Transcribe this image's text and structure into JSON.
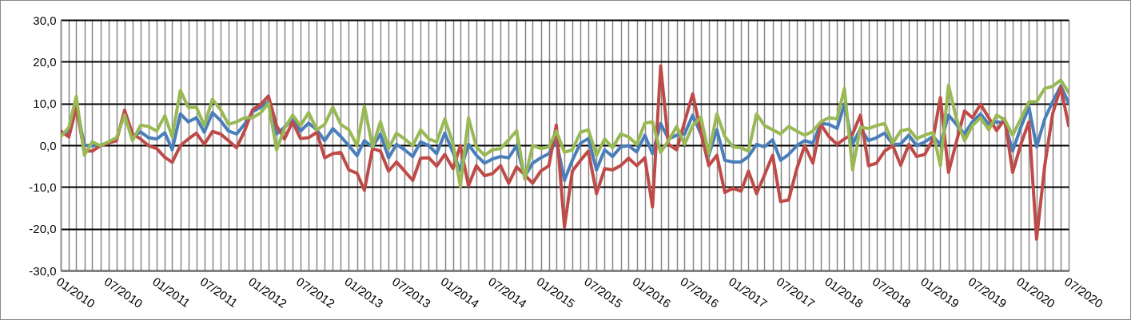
{
  "chart_data": {
    "type": "line",
    "x": [
      "2010-01",
      "2010-02",
      "2010-03",
      "2010-04",
      "2010-05",
      "2010-06",
      "2010-07",
      "2010-08",
      "2010-09",
      "2010-10",
      "2010-11",
      "2010-12",
      "2011-01",
      "2011-02",
      "2011-03",
      "2011-04",
      "2011-05",
      "2011-06",
      "2011-07",
      "2011-08",
      "2011-09",
      "2011-10",
      "2011-11",
      "2011-12",
      "2012-01",
      "2012-02",
      "2012-03",
      "2012-04",
      "2012-05",
      "2012-06",
      "2012-07",
      "2012-08",
      "2012-09",
      "2012-10",
      "2012-11",
      "2012-12",
      "2013-01",
      "2013-02",
      "2013-03",
      "2013-04",
      "2013-05",
      "2013-06",
      "2013-07",
      "2013-08",
      "2013-09",
      "2013-10",
      "2013-11",
      "2013-12",
      "2014-01",
      "2014-02",
      "2014-03",
      "2014-04",
      "2014-05",
      "2014-06",
      "2014-07",
      "2014-08",
      "2014-09",
      "2014-10",
      "2014-11",
      "2014-12",
      "2015-01",
      "2015-02",
      "2015-03",
      "2015-04",
      "2015-05",
      "2015-06",
      "2015-07",
      "2015-08",
      "2015-09",
      "2015-10",
      "2015-11",
      "2015-12",
      "2016-01",
      "2016-02",
      "2016-03",
      "2016-04",
      "2016-05",
      "2016-06",
      "2016-07",
      "2016-08",
      "2016-09",
      "2016-10",
      "2016-11",
      "2016-12",
      "2017-01",
      "2017-02",
      "2017-03",
      "2017-04",
      "2017-05",
      "2017-06",
      "2017-07",
      "2017-08",
      "2017-09",
      "2017-10",
      "2017-11",
      "2017-12",
      "2018-01",
      "2018-02",
      "2018-03",
      "2018-04",
      "2018-05",
      "2018-06",
      "2018-07",
      "2018-08",
      "2018-09",
      "2018-10",
      "2018-11",
      "2018-12",
      "2019-01",
      "2019-02",
      "2019-03",
      "2019-04",
      "2019-05",
      "2019-06",
      "2019-07",
      "2019-08",
      "2019-09",
      "2019-10",
      "2019-11",
      "2019-12",
      "2020-01",
      "2020-02",
      "2020-03",
      "2020-04",
      "2020-05",
      "2020-06",
      "2020-07"
    ],
    "series": [
      {
        "color": "#4a7ebb",
        "values": [
          2.5,
          3,
          9.5,
          0,
          -0.1,
          0,
          0.6,
          1.4,
          null,
          2,
          3.2,
          1.8,
          1.5,
          3.0,
          -1.1,
          7.5,
          5.6,
          6.6,
          3.1,
          7.8,
          5.9,
          3.4,
          2.7,
          5.0,
          8,
          9.1,
          10.5,
          2.7,
          4.3,
          6.3,
          3.4,
          5.3,
          3.7,
          1.1,
          4.0,
          2.1,
          -0.1,
          -2.5,
          1.1,
          -0.4,
          2.7,
          -3.0,
          0.2,
          -1.1,
          -2.7,
          0.8,
          -0.1,
          -2.0,
          2.9,
          -1.7,
          -6,
          0.2,
          -2.4,
          -4.3,
          -3.3,
          -2.7,
          -3.0,
          -0.1,
          -7.5,
          -4.3,
          -3.0,
          -2.0,
          1.1,
          -8.4,
          -3.6,
          0.5,
          1.6,
          -5.9,
          -1.1,
          -2.7,
          -0.4,
          -0.1,
          -1.6,
          2.4,
          -2,
          5.2,
          1.5,
          2.4,
          2.7,
          7.2,
          2.7,
          -2.4,
          3.7,
          -3.6,
          -4.0,
          -4.0,
          -2.7,
          0.2,
          -0.4,
          1.3,
          -3.6,
          -2.2,
          -0.1,
          1.1,
          0.5,
          5.2,
          5.0,
          4.0,
          9.8,
          0.2,
          4.0,
          1.1,
          1.8,
          2.9,
          0.2,
          0.3,
          2.4,
          -0.1,
          0.8,
          2.1,
          0.2,
          7.2,
          5.0,
          2.7,
          5.6,
          7.5,
          5.0,
          5.6,
          5.4,
          -1.4,
          4.3,
          9.1,
          -0.4,
          6.3,
          10.4,
          14.2,
          10.1
        ]
      },
      {
        "color": "#be4b48",
        "values": [
          3.4,
          2.0,
          9,
          -1.4,
          -1.4,
          -0.1,
          0.5,
          1.1,
          8.4,
          2.7,
          1.5,
          -0.1,
          -0.8,
          -2.9,
          -4.1,
          -0.1,
          1.5,
          2.9,
          0.2,
          3.3,
          2.7,
          1.1,
          -0.6,
          3.4,
          8.5,
          9.8,
          11.8,
          4.7,
          1.5,
          5.6,
          1.6,
          1.8,
          3.1,
          -3.0,
          -2.0,
          -1.7,
          -5.9,
          -6.7,
          -10.8,
          -0.8,
          -1.4,
          -6.2,
          -4.0,
          -6.2,
          -8.4,
          -3.1,
          -3.0,
          -5.0,
          -2.2,
          -5.6,
          -0.1,
          -9.7,
          -4.9,
          -7.3,
          -6.8,
          -4.9,
          -9.1,
          -5.2,
          -7.1,
          -9.1,
          -6.2,
          -4.9,
          4.8,
          -19.6,
          -6.2,
          -3.6,
          -1.4,
          -11.6,
          -5.6,
          -5.9,
          -4.9,
          -3.1,
          -4.9,
          -3.0,
          -14.8,
          19.0,
          0.2,
          -1.1,
          5.6,
          12.3,
          3.1,
          -4.9,
          -2.4,
          -11.3,
          -10.3,
          -11.0,
          -6.2,
          -11.6,
          -7.1,
          -2.4,
          -13.5,
          -13.1,
          -5.6,
          -0.1,
          -4.3,
          5.0,
          2.1,
          0.2,
          1.5,
          2.7,
          7.2,
          -4.9,
          -4.3,
          -1.4,
          -0.1,
          -4.8,
          0.2,
          -2.7,
          -2.2,
          1.5,
          11.4,
          -6.5,
          0.8,
          8.2,
          6.6,
          9.8,
          6.6,
          3.5,
          6.3,
          -6.5,
          0.2,
          5.6,
          -22.5,
          -4.9,
          7.5,
          13.9,
          4.7
        ]
      },
      {
        "color": "#98b954",
        "values": [
          2.0,
          4.3,
          11.7,
          -2.4,
          0.8,
          -0.1,
          0.8,
          1.8,
          7.2,
          1.1,
          4.8,
          4.5,
          3.4,
          7.1,
          2.0,
          13.1,
          9.1,
          9.1,
          4.7,
          11.0,
          8.5,
          5.0,
          5.6,
          6.6,
          6.6,
          7.8,
          10.1,
          -1.1,
          4.0,
          7.2,
          4.7,
          7.8,
          3.7,
          5.0,
          9.1,
          5.0,
          3.7,
          -0.1,
          9.4,
          -0.4,
          5.6,
          -0.8,
          2.9,
          1.5,
          -0.1,
          3.7,
          1.5,
          0.8,
          6.3,
          0.5,
          -9.9,
          6.6,
          -0.4,
          -2.4,
          -1.1,
          -0.8,
          1.3,
          3.5,
          -8.1,
          -0.1,
          -0.8,
          -0.4,
          3.4,
          -1.7,
          -1.1,
          3.1,
          3.7,
          -2.4,
          1.5,
          -0.6,
          2.7,
          2.0,
          0.2,
          5.3,
          5.6,
          -1.7,
          1.1,
          4.5,
          0.2,
          4.7,
          6.7,
          -2.0,
          7.5,
          2.1,
          -0.4,
          -0.6,
          -1.4,
          7.5,
          4.7,
          3.7,
          2.7,
          4.5,
          3.4,
          2.4,
          3.4,
          5.6,
          6.6,
          6.3,
          13.6,
          -5.9,
          4.3,
          4.0,
          4.7,
          5.2,
          0.5,
          3.4,
          3.9,
          1.6,
          2.4,
          3.1,
          -4.9,
          14.4,
          6.3,
          1.1,
          4.7,
          6.6,
          3.7,
          7.2,
          6.1,
          2.4,
          6.3,
          10.4,
          10.4,
          13.6,
          14.1,
          15.6,
          12.6
        ]
      }
    ],
    "xlim": [
      "2010-01",
      "2020-07"
    ],
    "xticks": [
      {
        "value": "2010-01",
        "label": "01/2010"
      },
      {
        "value": "2010-02",
        "label": null
      },
      {
        "value": "2010-03",
        "label": null
      },
      {
        "value": "2010-04",
        "label": null
      },
      {
        "value": "2010-05",
        "label": null
      },
      {
        "value": "2010-06",
        "label": null
      },
      {
        "value": "2010-07",
        "label": "07/2010"
      },
      {
        "value": "2010-08",
        "label": null
      },
      {
        "value": "2010-09",
        "label": null
      },
      {
        "value": "2010-10",
        "label": null
      },
      {
        "value": "2010-11",
        "label": null
      },
      {
        "value": "2010-12",
        "label": null
      },
      {
        "value": "2011-01",
        "label": "01/2011"
      },
      {
        "value": "2011-02",
        "label": null
      },
      {
        "value": "2011-03",
        "label": null
      },
      {
        "value": "2011-04",
        "label": null
      },
      {
        "value": "2011-05",
        "label": null
      },
      {
        "value": "2011-06",
        "label": null
      },
      {
        "value": "2011-07",
        "label": "07/2011"
      },
      {
        "value": "2011-08",
        "label": null
      },
      {
        "value": "2011-09",
        "label": null
      },
      {
        "value": "2011-10",
        "label": null
      },
      {
        "value": "2011-11",
        "label": null
      },
      {
        "value": "2011-12",
        "label": null
      },
      {
        "value": "2012-01",
        "label": "01/2012"
      },
      {
        "value": "2012-02",
        "label": null
      },
      {
        "value": "2012-03",
        "label": null
      },
      {
        "value": "2012-04",
        "label": null
      },
      {
        "value": "2012-05",
        "label": null
      },
      {
        "value": "2012-06",
        "label": null
      },
      {
        "value": "2012-07",
        "label": "07/2012"
      },
      {
        "value": "2012-08",
        "label": null
      },
      {
        "value": "2012-09",
        "label": null
      },
      {
        "value": "2012-10",
        "label": null
      },
      {
        "value": "2012-11",
        "label": null
      },
      {
        "value": "2012-12",
        "label": null
      },
      {
        "value": "2013-01",
        "label": "01/2013"
      },
      {
        "value": "2013-02",
        "label": null
      },
      {
        "value": "2013-03",
        "label": null
      },
      {
        "value": "2013-04",
        "label": null
      },
      {
        "value": "2013-05",
        "label": null
      },
      {
        "value": "2013-06",
        "label": null
      },
      {
        "value": "2013-07",
        "label": "07/2013"
      },
      {
        "value": "2013-08",
        "label": null
      },
      {
        "value": "2013-09",
        "label": null
      },
      {
        "value": "2013-10",
        "label": null
      },
      {
        "value": "2013-11",
        "label": null
      },
      {
        "value": "2013-12",
        "label": null
      },
      {
        "value": "2014-01",
        "label": "01/2014"
      },
      {
        "value": "2014-02",
        "label": null
      },
      {
        "value": "2014-03",
        "label": null
      },
      {
        "value": "2014-04",
        "label": null
      },
      {
        "value": "2014-05",
        "label": null
      },
      {
        "value": "2014-06",
        "label": null
      },
      {
        "value": "2014-07",
        "label": "07/2014"
      },
      {
        "value": "2014-08",
        "label": null
      },
      {
        "value": "2014-09",
        "label": null
      },
      {
        "value": "2014-10",
        "label": null
      },
      {
        "value": "2014-11",
        "label": null
      },
      {
        "value": "2014-12",
        "label": null
      },
      {
        "value": "2015-01",
        "label": "01/2015"
      },
      {
        "value": "2015-02",
        "label": null
      },
      {
        "value": "2015-03",
        "label": null
      },
      {
        "value": "2015-04",
        "label": null
      },
      {
        "value": "2015-05",
        "label": null
      },
      {
        "value": "2015-06",
        "label": null
      },
      {
        "value": "2015-07",
        "label": "07/2015"
      },
      {
        "value": "2015-08",
        "label": null
      },
      {
        "value": "2015-09",
        "label": null
      },
      {
        "value": "2015-10",
        "label": null
      },
      {
        "value": "2015-11",
        "label": null
      },
      {
        "value": "2015-12",
        "label": null
      },
      {
        "value": "2016-01",
        "label": "01/2016"
      },
      {
        "value": "2016-02",
        "label": null
      },
      {
        "value": "2016-03",
        "label": null
      },
      {
        "value": "2016-04",
        "label": null
      },
      {
        "value": "2016-05",
        "label": null
      },
      {
        "value": "2016-06",
        "label": null
      },
      {
        "value": "2016-07",
        "label": "07/2016"
      },
      {
        "value": "2016-08",
        "label": null
      },
      {
        "value": "2016-09",
        "label": null
      },
      {
        "value": "2016-10",
        "label": null
      },
      {
        "value": "2016-11",
        "label": null
      },
      {
        "value": "2016-12",
        "label": null
      },
      {
        "value": "2017-01",
        "label": "01/2017"
      },
      {
        "value": "2017-02",
        "label": null
      },
      {
        "value": "2017-03",
        "label": null
      },
      {
        "value": "2017-04",
        "label": null
      },
      {
        "value": "2017-05",
        "label": null
      },
      {
        "value": "2017-06",
        "label": null
      },
      {
        "value": "2017-07",
        "label": "07/2017"
      },
      {
        "value": "2017-08",
        "label": null
      },
      {
        "value": "2017-09",
        "label": null
      },
      {
        "value": "2017-10",
        "label": null
      },
      {
        "value": "2017-11",
        "label": null
      },
      {
        "value": "2017-12",
        "label": null
      },
      {
        "value": "2018-01",
        "label": "01/2018"
      },
      {
        "value": "2018-02",
        "label": null
      },
      {
        "value": "2018-03",
        "label": null
      },
      {
        "value": "2018-04",
        "label": null
      },
      {
        "value": "2018-05",
        "label": null
      },
      {
        "value": "2018-06",
        "label": null
      },
      {
        "value": "2018-07",
        "label": "07/2018"
      },
      {
        "value": "2018-08",
        "label": null
      },
      {
        "value": "2018-09",
        "label": null
      },
      {
        "value": "2018-10",
        "label": null
      },
      {
        "value": "2018-11",
        "label": null
      },
      {
        "value": "2018-12",
        "label": null
      },
      {
        "value": "2019-01",
        "label": "01/2019"
      },
      {
        "value": "2019-02",
        "label": null
      },
      {
        "value": "2019-03",
        "label": null
      },
      {
        "value": "2019-04",
        "label": null
      },
      {
        "value": "2019-05",
        "label": null
      },
      {
        "value": "2019-06",
        "label": null
      },
      {
        "value": "2019-07",
        "label": "07/2019"
      },
      {
        "value": "2019-08",
        "label": null
      },
      {
        "value": "2019-09",
        "label": null
      },
      {
        "value": "2019-10",
        "label": null
      },
      {
        "value": "2019-11",
        "label": null
      },
      {
        "value": "2019-12",
        "label": null
      },
      {
        "value": "2020-01",
        "label": "01/2020"
      },
      {
        "value": "2020-02",
        "label": null
      },
      {
        "value": "2020-03",
        "label": null
      },
      {
        "value": "2020-04",
        "label": null
      },
      {
        "value": "2020-05",
        "label": null
      },
      {
        "value": "2020-06",
        "label": null
      },
      {
        "value": "2020-07",
        "label": "07/2020"
      }
    ],
    "ylim": [
      -30,
      30
    ],
    "yticks": [
      {
        "value": -30,
        "label": "-30,0"
      },
      {
        "value": -20,
        "label": "-20,0"
      },
      {
        "value": -10,
        "label": "-10,0"
      },
      {
        "value": 0,
        "label": "0,0"
      },
      {
        "value": 10,
        "label": "10,0"
      },
      {
        "value": 20,
        "label": "20,0"
      },
      {
        "value": 30,
        "label": "30,0"
      }
    ],
    "grid": true,
    "line_style": "solid",
    "marker": "none"
  }
}
